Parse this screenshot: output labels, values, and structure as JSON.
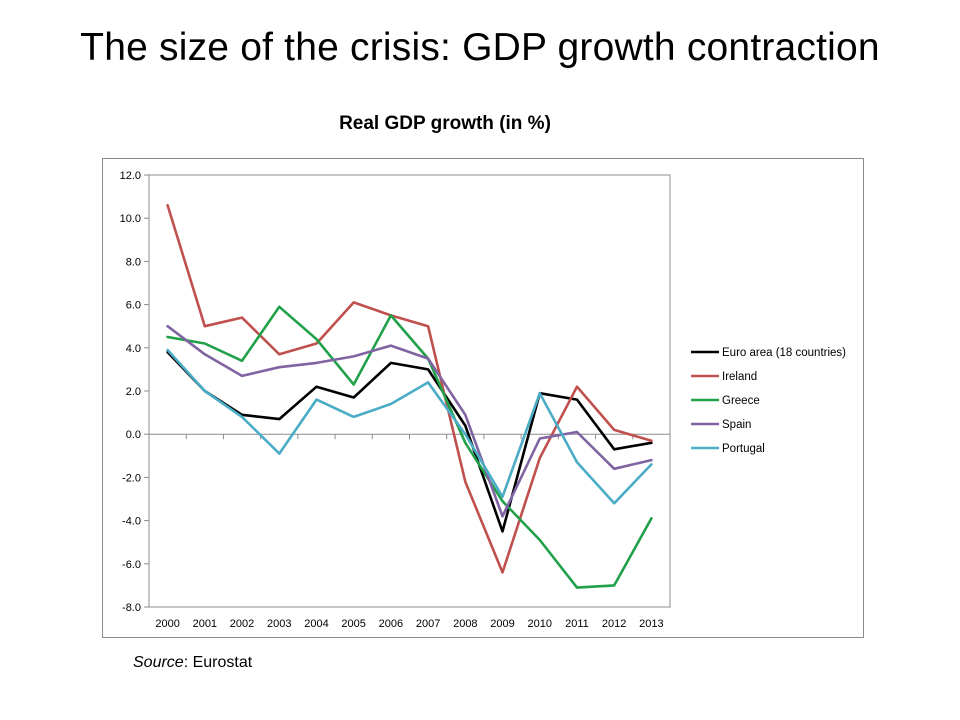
{
  "slide": {
    "title": "The size of the crisis: GDP growth contraction",
    "source_label": "Source",
    "source_value": ": Eurostat"
  },
  "chart_data": {
    "type": "line",
    "title": "Real GDP growth (in %)",
    "xlabel": "",
    "ylabel": "",
    "x": [
      "2000",
      "2001",
      "2002",
      "2003",
      "2004",
      "2005",
      "2006",
      "2007",
      "2008",
      "2009",
      "2010",
      "2011",
      "2012",
      "2013"
    ],
    "ylim": [
      -8.0,
      12.0
    ],
    "yticks": [
      "12.0",
      "10.0",
      "8.0",
      "6.0",
      "4.0",
      "2.0",
      "0.0",
      "-2.0",
      "-4.0",
      "-6.0",
      "-8.0"
    ],
    "grid": false,
    "legend_position": "right",
    "series": [
      {
        "name": "Euro area (18 countries)",
        "color": "#000000",
        "values": [
          3.8,
          2.0,
          0.9,
          0.7,
          2.2,
          1.7,
          3.3,
          3.0,
          0.4,
          -4.5,
          1.9,
          1.6,
          -0.7,
          -0.4
        ]
      },
      {
        "name": "Ireland",
        "color": "#c0504d",
        "values": [
          10.6,
          5.0,
          5.4,
          3.7,
          4.2,
          6.1,
          5.5,
          5.0,
          -2.2,
          -6.4,
          -1.1,
          2.2,
          0.2,
          -0.3
        ]
      },
      {
        "name": "Greece",
        "color": "#21a04a",
        "values": [
          4.5,
          4.2,
          3.4,
          5.9,
          4.4,
          2.3,
          5.5,
          3.5,
          -0.4,
          -3.1,
          -4.9,
          -7.1,
          -7.0,
          -3.9
        ]
      },
      {
        "name": "Spain",
        "color": "#8064a2",
        "values": [
          5.0,
          3.7,
          2.7,
          3.1,
          3.3,
          3.6,
          4.1,
          3.5,
          0.9,
          -3.8,
          -0.2,
          0.1,
          -1.6,
          -1.2
        ]
      },
      {
        "name": "Portugal",
        "color": "#4bacc6",
        "values": [
          3.9,
          2.0,
          0.8,
          -0.9,
          1.6,
          0.8,
          1.4,
          2.4,
          0.0,
          -2.9,
          1.9,
          -1.3,
          -3.2,
          -1.4
        ]
      }
    ]
  }
}
